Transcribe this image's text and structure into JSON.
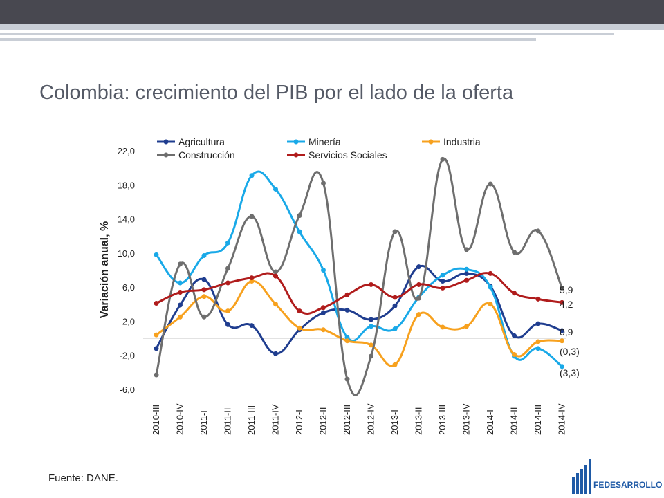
{
  "title": "Colombia: crecimiento del PIB por el lado de la oferta",
  "source": "Fuente: DANE.",
  "logo_text": "FEDESARROLLO",
  "colors": {
    "agricultura": "#1f3d8f",
    "mineria": "#19a9e8",
    "industria": "#f7a11e",
    "construccion": "#6e6e6e",
    "servicios": "#b01c1c"
  },
  "chart_data": {
    "type": "line",
    "ylabel": "Variación anual, %",
    "xlabel": "",
    "ylim": [
      -6,
      22
    ],
    "yticks": [
      -6,
      -2,
      2,
      6,
      10,
      14,
      18,
      22
    ],
    "ytick_labels": [
      "-6,0",
      "-2,0",
      "2,0",
      "6,0",
      "10,0",
      "14,0",
      "18,0",
      "22,0"
    ],
    "categories": [
      "2010-III",
      "2010-IV",
      "2011-I",
      "2011-II",
      "2011-III",
      "2011-IV",
      "2012-I",
      "2012-II",
      "2012-III",
      "2012-IV",
      "2013-I",
      "2013-II",
      "2013-III",
      "2013-IV",
      "2014-I",
      "2014-II",
      "2014-III",
      "2014-IV"
    ],
    "legend_position": "top",
    "series": [
      {
        "key": "agricultura",
        "name": "Agricultura",
        "values": [
          -1.2,
          3.9,
          6.9,
          1.6,
          1.5,
          -1.8,
          1.0,
          3.0,
          3.3,
          2.2,
          3.8,
          8.4,
          6.7,
          7.6,
          6.1,
          0.3,
          1.7,
          0.9
        ],
        "end_label": "0,9"
      },
      {
        "key": "mineria",
        "name": "Minería",
        "values": [
          9.8,
          6.5,
          9.7,
          11.2,
          19.1,
          17.5,
          12.5,
          8.0,
          0.1,
          1.4,
          1.1,
          4.8,
          7.4,
          8.1,
          6.0,
          -2.1,
          -1.2,
          -3.3
        ],
        "end_label": "(3,3)"
      },
      {
        "key": "industria",
        "name": "Industria",
        "values": [
          0.4,
          2.5,
          4.9,
          3.2,
          6.7,
          4.0,
          1.2,
          1.0,
          -0.3,
          -0.8,
          -3.1,
          2.8,
          1.3,
          1.4,
          4.0,
          -1.9,
          -0.4,
          -0.3
        ],
        "end_label": "(0,3)"
      },
      {
        "key": "construccion",
        "name": "Construcción",
        "values": [
          -4.3,
          8.7,
          2.5,
          8.2,
          14.3,
          7.8,
          14.4,
          18.2,
          -4.8,
          -2.1,
          12.5,
          4.7,
          21.0,
          10.4,
          18.1,
          10.1,
          12.6,
          5.9
        ],
        "end_label": "5,9"
      },
      {
        "key": "servicios",
        "name": "Servicios Sociales",
        "values": [
          4.1,
          5.4,
          5.7,
          6.5,
          7.1,
          7.3,
          3.2,
          3.6,
          5.1,
          6.3,
          4.8,
          6.3,
          5.9,
          6.8,
          7.6,
          5.3,
          4.6,
          4.2
        ],
        "end_label": "4,2"
      }
    ]
  }
}
